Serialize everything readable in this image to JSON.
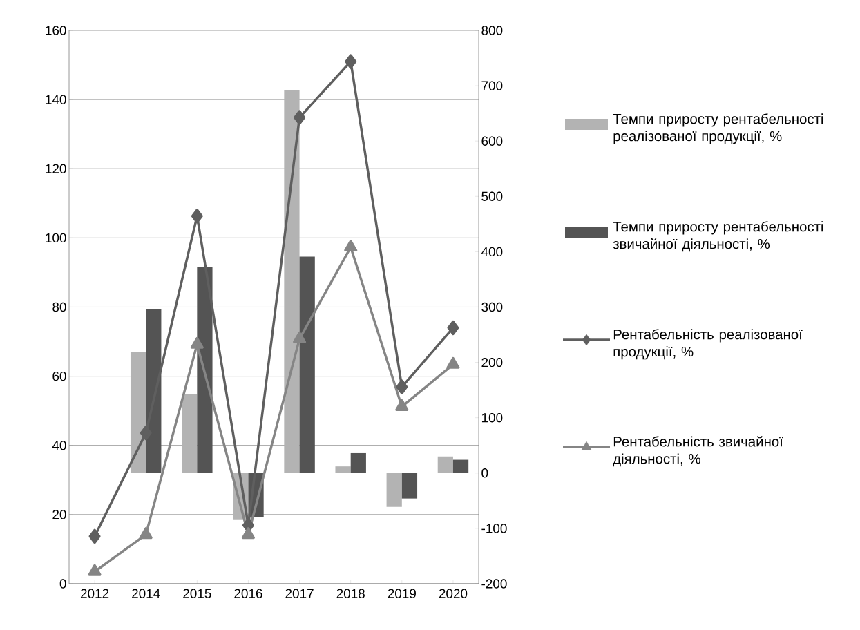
{
  "chart_data": {
    "type": "bar",
    "categories": [
      "2012",
      "2014",
      "2015",
      "2016",
      "2017",
      "2018",
      "2019",
      "2020"
    ],
    "series": [
      {
        "name": "Темпи приросту рентабельності реалізованої продукції, %",
        "axis": "y2",
        "color": "#b3b3b3",
        "values": [
          null,
          219,
          143,
          -85,
          692,
          12,
          -61,
          30
        ]
      },
      {
        "name": "Темпи приросту рентабельності звичайної діяльності, %",
        "axis": "y2",
        "color": "#545454",
        "values": [
          null,
          297,
          373,
          -79,
          391,
          36,
          -46,
          24
        ]
      },
      {
        "name": "Рентабельність реалізованої продукції, %",
        "type": "line",
        "color": "#5f5f5f",
        "marker": "diamond",
        "values": [
          13.7,
          43.6,
          106.3,
          16.9,
          134.8,
          151.0,
          56.9,
          74.0
        ]
      },
      {
        "name": "Рентабельність звичайної діяльності, %",
        "type": "line",
        "color": "#858585",
        "marker": "triangle",
        "values": [
          3.5,
          14.2,
          69.2,
          14.2,
          70.8,
          97.3,
          51.2,
          63.4
        ]
      }
    ],
    "ylim": [
      0,
      160
    ],
    "yticks": [
      0,
      20,
      40,
      60,
      80,
      100,
      120,
      140,
      160
    ],
    "y2lim": [
      -200,
      800
    ],
    "y2ticks": [
      -200,
      -100,
      0,
      100,
      200,
      300,
      400,
      500,
      600,
      700,
      800
    ],
    "grid": "y",
    "legend": "right"
  }
}
